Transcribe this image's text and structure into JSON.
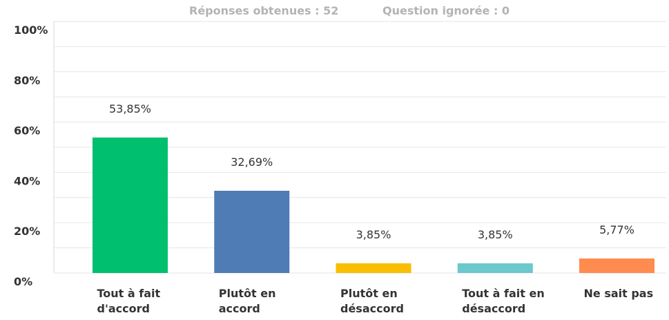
{
  "header": {
    "responses": "Réponses obtenues : 52",
    "skipped": "Question ignorée : 0"
  },
  "chart_data": {
    "type": "bar",
    "categories": [
      "Tout à fait d'accord",
      "Plutôt en accord",
      "Plutôt en désaccord",
      "Tout à fait en désaccord",
      "Ne sait pas"
    ],
    "values": [
      53.85,
      32.69,
      3.85,
      3.85,
      5.77
    ],
    "value_labels": [
      "53,85%",
      "32,69%",
      "3,85%",
      "3,85%",
      "5,77%"
    ],
    "colors": [
      "#00bf6f",
      "#507cb6",
      "#f9be00",
      "#6bc8cd",
      "#ff8b4f"
    ],
    "ylim": [
      0,
      100
    ],
    "yticks": [
      {
        "value": 0,
        "label": "0%"
      },
      {
        "value": 20,
        "label": "20%"
      },
      {
        "value": 40,
        "label": "40%"
      },
      {
        "value": 60,
        "label": "60%"
      },
      {
        "value": 80,
        "label": "80%"
      },
      {
        "value": 100,
        "label": "100%"
      }
    ],
    "minor_yticks": [
      10,
      30,
      50,
      70,
      90
    ],
    "grid": true
  }
}
